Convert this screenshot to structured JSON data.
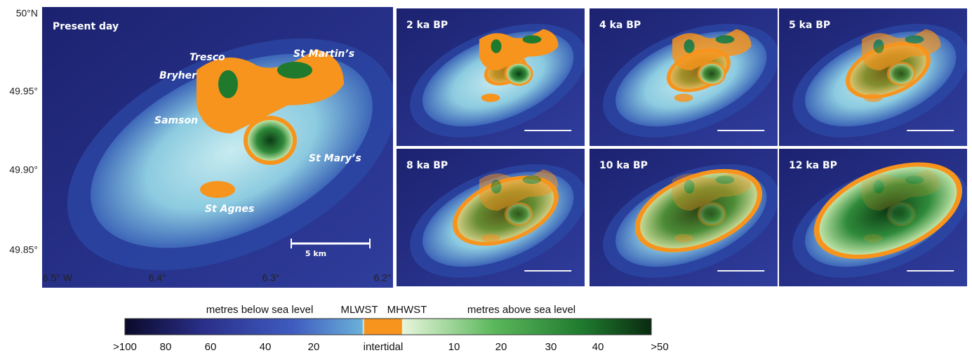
{
  "main_map": {
    "title": "Present day",
    "places": [
      "Tresco",
      "St Martin’s",
      "Bryher",
      "Samson",
      "St Mary’s",
      "St  Agnes"
    ],
    "scale": "5 km",
    "lat_labels": [
      "50°N",
      "49.95°",
      "49.90°",
      "49.85°"
    ],
    "lon_labels": [
      "6.5° W",
      "6.4°",
      "6.3°",
      "6.2°"
    ]
  },
  "panels": [
    "2 ka BP",
    "4 ka BP",
    "5 ka BP",
    "8 ka BP",
    "10 ka BP",
    "12 ka BP"
  ],
  "colorbar": {
    "below": "metres below sea level",
    "mlwst": "MLWST",
    "mhwst": "MHWST",
    "above": "metres above sea level",
    "ticks": [
      ">100",
      "80",
      "60",
      "40",
      "20",
      "intertidal",
      "10",
      "20",
      "30",
      "40",
      ">50"
    ]
  }
}
